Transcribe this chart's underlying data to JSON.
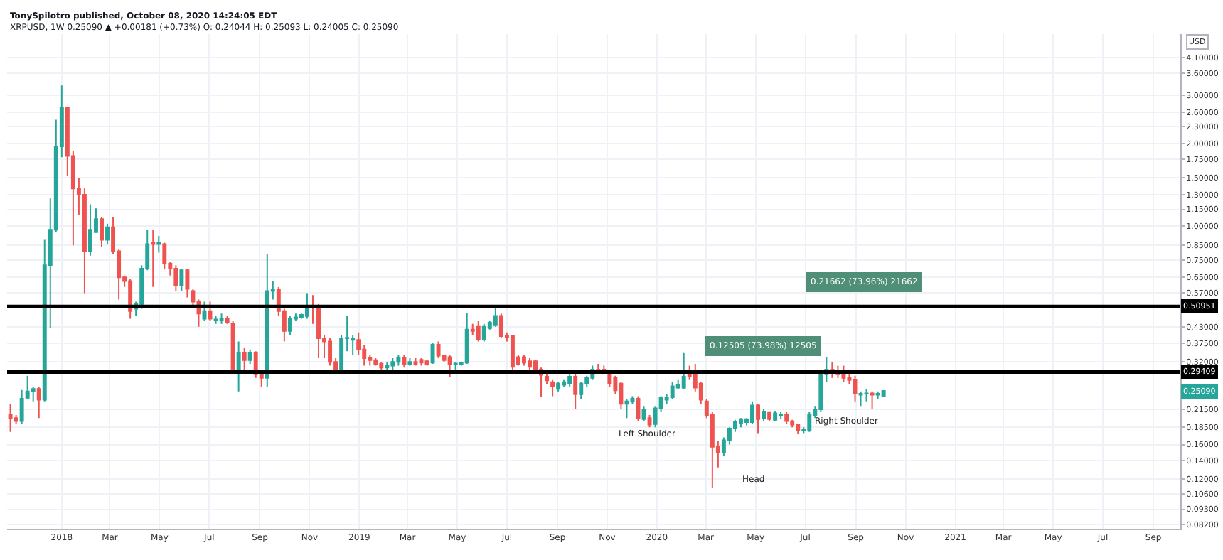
{
  "chart_data": {
    "type": "candlestick",
    "title": "TonySpilotro published, October 08, 2020 14:24:05 EDT",
    "subtitle": "XRPUSD, 1W 0.25090 ▲ +0.00181 (+0.73%) O: 0.24044 H: 0.25093 L: 0.24005 C: 0.25090",
    "ylabel": "USD",
    "x": [
      "2017-10-30",
      "2017-11-06",
      "2017-11-13",
      "2017-11-20",
      "2017-11-27",
      "2017-12-04",
      "2017-12-11",
      "2017-12-18",
      "2017-12-25",
      "2018-01-01",
      "2018-01-08",
      "2018-01-15",
      "2018-01-22",
      "2018-01-29",
      "2018-02-05",
      "2018-02-12",
      "2018-02-19",
      "2018-02-26",
      "2018-03-05",
      "2018-03-12",
      "2018-03-19",
      "2018-03-26",
      "2018-04-02",
      "2018-04-09",
      "2018-04-16",
      "2018-04-23",
      "2018-04-30",
      "2018-05-07",
      "2018-05-14",
      "2018-05-21",
      "2018-05-28",
      "2018-06-04",
      "2018-06-11",
      "2018-06-18",
      "2018-06-25",
      "2018-07-02",
      "2018-07-09",
      "2018-07-16",
      "2018-07-23",
      "2018-07-30",
      "2018-08-06",
      "2018-08-13",
      "2018-08-20",
      "2018-08-27",
      "2018-09-03",
      "2018-09-10",
      "2018-09-17",
      "2018-09-24",
      "2018-10-01",
      "2018-10-08",
      "2018-10-15",
      "2018-10-22",
      "2018-10-29",
      "2018-11-05",
      "2018-11-12",
      "2018-11-19",
      "2018-11-26",
      "2018-12-03",
      "2018-12-10",
      "2018-12-17",
      "2018-12-24",
      "2018-12-31",
      "2019-01-07",
      "2019-01-14",
      "2019-01-21",
      "2019-01-28",
      "2019-02-04",
      "2019-02-11",
      "2019-02-18",
      "2019-02-25",
      "2019-03-04",
      "2019-03-11",
      "2019-03-18",
      "2019-03-25",
      "2019-04-01",
      "2019-04-08",
      "2019-04-15",
      "2019-04-22",
      "2019-04-29",
      "2019-05-06",
      "2019-05-13",
      "2019-05-20",
      "2019-05-27",
      "2019-06-03",
      "2019-06-10",
      "2019-06-17",
      "2019-06-24",
      "2019-07-01",
      "2019-07-08",
      "2019-07-15",
      "2019-07-22",
      "2019-07-29",
      "2019-08-05",
      "2019-08-12",
      "2019-08-19",
      "2019-08-26",
      "2019-09-02",
      "2019-09-09",
      "2019-09-16",
      "2019-09-23",
      "2019-09-30",
      "2019-10-07",
      "2019-10-14",
      "2019-10-21",
      "2019-10-28",
      "2019-11-04",
      "2019-11-11",
      "2019-11-18",
      "2019-11-25",
      "2019-12-02",
      "2019-12-09",
      "2019-12-16",
      "2019-12-23",
      "2019-12-30",
      "2020-01-06",
      "2020-01-13",
      "2020-01-20",
      "2020-01-27",
      "2020-02-03",
      "2020-02-10",
      "2020-02-17",
      "2020-02-24",
      "2020-03-02",
      "2020-03-09",
      "2020-03-16",
      "2020-03-23",
      "2020-03-30",
      "2020-04-06",
      "2020-04-13",
      "2020-04-20",
      "2020-04-27",
      "2020-05-04",
      "2020-05-11",
      "2020-05-18",
      "2020-05-25",
      "2020-06-01",
      "2020-06-08",
      "2020-06-15",
      "2020-06-22",
      "2020-06-29",
      "2020-07-06",
      "2020-07-13",
      "2020-07-20",
      "2020-07-27",
      "2020-08-03",
      "2020-08-10",
      "2020-08-17",
      "2020-08-24",
      "2020-08-31",
      "2020-09-07",
      "2020-09-14",
      "2020-09-21",
      "2020-09-28",
      "2020-10-05"
    ],
    "ohlc": [
      [
        0.205,
        0.225,
        0.178,
        0.2
      ],
      [
        0.2,
        0.205,
        0.19,
        0.195
      ],
      [
        0.195,
        0.253,
        0.19,
        0.235
      ],
      [
        0.237,
        0.285,
        0.235,
        0.25
      ],
      [
        0.25,
        0.26,
        0.23,
        0.255
      ],
      [
        0.255,
        0.26,
        0.2,
        0.233
      ],
      [
        0.233,
        0.89,
        0.23,
        0.72
      ],
      [
        0.72,
        1.26,
        0.425,
        0.97
      ],
      [
        0.97,
        2.44,
        0.95,
        1.95
      ],
      [
        1.95,
        3.25,
        1.78,
        2.7
      ],
      [
        2.7,
        2.72,
        1.52,
        1.8
      ],
      [
        1.8,
        1.87,
        0.85,
        1.37
      ],
      [
        1.37,
        1.5,
        1.1,
        1.3
      ],
      [
        1.3,
        1.37,
        0.57,
        0.81
      ],
      [
        0.81,
        1.2,
        0.78,
        0.97
      ],
      [
        0.95,
        1.16,
        0.95,
        1.06
      ],
      [
        1.06,
        1.08,
        0.84,
        0.89
      ],
      [
        0.89,
        1.02,
        0.86,
        0.99
      ],
      [
        0.99,
        1.08,
        0.79,
        0.81
      ],
      [
        0.81,
        0.82,
        0.54,
        0.65
      ],
      [
        0.65,
        0.66,
        0.6,
        0.63
      ],
      [
        0.63,
        0.64,
        0.46,
        0.49
      ],
      [
        0.5,
        0.53,
        0.47,
        0.52
      ],
      [
        0.52,
        0.72,
        0.5,
        0.7
      ],
      [
        0.7,
        0.97,
        0.69,
        0.86
      ],
      [
        0.87,
        0.97,
        0.6,
        0.86
      ],
      [
        0.86,
        0.92,
        0.8,
        0.87
      ],
      [
        0.86,
        0.87,
        0.7,
        0.73
      ],
      [
        0.73,
        0.74,
        0.66,
        0.7
      ],
      [
        0.7,
        0.72,
        0.58,
        0.61
      ],
      [
        0.61,
        0.7,
        0.58,
        0.69
      ],
      [
        0.69,
        0.7,
        0.55,
        0.59
      ],
      [
        0.58,
        0.59,
        0.51,
        0.53
      ],
      [
        0.53,
        0.54,
        0.43,
        0.48
      ],
      [
        0.46,
        0.53,
        0.45,
        0.49
      ],
      [
        0.49,
        0.53,
        0.45,
        0.46
      ],
      [
        0.455,
        0.47,
        0.44,
        0.457
      ],
      [
        0.455,
        0.48,
        0.44,
        0.46
      ],
      [
        0.46,
        0.47,
        0.44,
        0.445
      ],
      [
        0.44,
        0.45,
        0.29,
        0.3
      ],
      [
        0.3,
        0.38,
        0.25,
        0.345
      ],
      [
        0.345,
        0.36,
        0.3,
        0.325
      ],
      [
        0.325,
        0.355,
        0.315,
        0.345
      ],
      [
        0.345,
        0.35,
        0.28,
        0.29
      ],
      [
        0.29,
        0.3,
        0.26,
        0.28
      ],
      [
        0.28,
        0.79,
        0.26,
        0.58
      ],
      [
        0.58,
        0.63,
        0.54,
        0.585
      ],
      [
        0.585,
        0.6,
        0.47,
        0.49
      ],
      [
        0.49,
        0.5,
        0.38,
        0.415
      ],
      [
        0.415,
        0.47,
        0.4,
        0.46
      ],
      [
        0.46,
        0.48,
        0.45,
        0.465
      ],
      [
        0.465,
        0.48,
        0.46,
        0.475
      ],
      [
        0.47,
        0.57,
        0.46,
        0.51
      ],
      [
        0.51,
        0.56,
        0.44,
        0.505
      ],
      [
        0.505,
        0.52,
        0.33,
        0.39
      ],
      [
        0.39,
        0.4,
        0.33,
        0.38
      ],
      [
        0.38,
        0.39,
        0.31,
        0.32
      ],
      [
        0.32,
        0.33,
        0.29,
        0.3
      ],
      [
        0.3,
        0.4,
        0.29,
        0.39
      ],
      [
        0.39,
        0.47,
        0.35,
        0.392
      ],
      [
        0.385,
        0.4,
        0.34,
        0.39
      ],
      [
        0.385,
        0.41,
        0.34,
        0.355
      ],
      [
        0.355,
        0.37,
        0.31,
        0.33
      ],
      [
        0.33,
        0.34,
        0.31,
        0.325
      ],
      [
        0.325,
        0.33,
        0.31,
        0.315
      ],
      [
        0.315,
        0.32,
        0.29,
        0.305
      ],
      [
        0.305,
        0.32,
        0.29,
        0.31
      ],
      [
        0.31,
        0.33,
        0.3,
        0.32
      ],
      [
        0.32,
        0.34,
        0.31,
        0.33
      ],
      [
        0.33,
        0.34,
        0.305,
        0.315
      ],
      [
        0.315,
        0.33,
        0.31,
        0.32
      ],
      [
        0.32,
        0.33,
        0.31,
        0.315
      ],
      [
        0.326,
        0.33,
        0.31,
        0.318
      ],
      [
        0.322,
        0.325,
        0.31,
        0.315
      ],
      [
        0.318,
        0.375,
        0.315,
        0.37
      ],
      [
        0.37,
        0.38,
        0.33,
        0.337
      ],
      [
        0.337,
        0.34,
        0.32,
        0.325
      ],
      [
        0.333,
        0.34,
        0.283,
        0.315
      ],
      [
        0.315,
        0.32,
        0.3,
        0.316
      ],
      [
        0.315,
        0.32,
        0.31,
        0.318
      ],
      [
        0.318,
        0.482,
        0.315,
        0.42
      ],
      [
        0.42,
        0.44,
        0.4,
        0.415
      ],
      [
        0.43,
        0.45,
        0.38,
        0.387
      ],
      [
        0.387,
        0.44,
        0.38,
        0.43
      ],
      [
        0.425,
        0.45,
        0.42,
        0.445
      ],
      [
        0.435,
        0.51,
        0.43,
        0.471
      ],
      [
        0.471,
        0.48,
        0.39,
        0.397
      ],
      [
        0.397,
        0.41,
        0.38,
        0.393
      ],
      [
        0.397,
        0.4,
        0.3,
        0.307
      ],
      [
        0.333,
        0.34,
        0.31,
        0.315
      ],
      [
        0.333,
        0.34,
        0.31,
        0.318
      ],
      [
        0.322,
        0.33,
        0.3,
        0.307
      ],
      [
        0.322,
        0.325,
        0.29,
        0.3
      ],
      [
        0.3,
        0.305,
        0.238,
        0.287
      ],
      [
        0.283,
        0.29,
        0.265,
        0.274
      ],
      [
        0.27,
        0.275,
        0.24,
        0.261
      ],
      [
        0.255,
        0.27,
        0.25,
        0.267
      ],
      [
        0.264,
        0.275,
        0.26,
        0.27
      ],
      [
        0.267,
        0.29,
        0.26,
        0.283
      ],
      [
        0.283,
        0.29,
        0.215,
        0.244
      ],
      [
        0.244,
        0.27,
        0.235,
        0.267
      ],
      [
        0.267,
        0.285,
        0.26,
        0.28
      ],
      [
        0.28,
        0.31,
        0.275,
        0.3
      ],
      [
        0.3,
        0.315,
        0.29,
        0.297
      ],
      [
        0.3,
        0.31,
        0.29,
        0.297
      ],
      [
        0.297,
        0.3,
        0.26,
        0.267
      ],
      [
        0.28,
        0.285,
        0.245,
        0.252
      ],
      [
        0.267,
        0.27,
        0.215,
        0.225
      ],
      [
        0.225,
        0.235,
        0.2,
        0.23
      ],
      [
        0.23,
        0.24,
        0.225,
        0.235
      ],
      [
        0.235,
        0.24,
        0.195,
        0.2
      ],
      [
        0.198,
        0.22,
        0.195,
        0.215
      ],
      [
        0.2,
        0.205,
        0.185,
        0.189
      ],
      [
        0.19,
        0.22,
        0.185,
        0.217
      ],
      [
        0.217,
        0.24,
        0.21,
        0.238
      ],
      [
        0.233,
        0.245,
        0.225,
        0.238
      ],
      [
        0.238,
        0.27,
        0.235,
        0.261
      ],
      [
        0.258,
        0.275,
        0.255,
        0.264
      ],
      [
        0.258,
        0.345,
        0.255,
        0.283
      ],
      [
        0.293,
        0.31,
        0.275,
        0.283
      ],
      [
        0.29,
        0.315,
        0.25,
        0.258
      ],
      [
        0.267,
        0.27,
        0.225,
        0.233
      ],
      [
        0.23,
        0.235,
        0.2,
        0.205
      ],
      [
        0.205,
        0.21,
        0.111,
        0.157
      ],
      [
        0.157,
        0.165,
        0.132,
        0.15
      ],
      [
        0.15,
        0.17,
        0.145,
        0.166
      ],
      [
        0.166,
        0.185,
        0.16,
        0.183
      ],
      [
        0.183,
        0.197,
        0.178,
        0.193
      ],
      [
        0.191,
        0.2,
        0.185,
        0.198
      ],
      [
        0.193,
        0.2,
        0.188,
        0.198
      ],
      [
        0.193,
        0.23,
        0.19,
        0.222
      ],
      [
        0.222,
        0.225,
        0.176,
        0.198
      ],
      [
        0.2,
        0.215,
        0.195,
        0.21
      ],
      [
        0.209,
        0.21,
        0.195,
        0.198
      ],
      [
        0.197,
        0.212,
        0.195,
        0.208
      ],
      [
        0.205,
        0.21,
        0.198,
        0.206
      ],
      [
        0.205,
        0.21,
        0.19,
        0.195
      ],
      [
        0.193,
        0.197,
        0.185,
        0.189
      ],
      [
        0.189,
        0.19,
        0.175,
        0.18
      ],
      [
        0.18,
        0.185,
        0.176,
        0.181
      ],
      [
        0.18,
        0.21,
        0.178,
        0.205
      ],
      [
        0.205,
        0.22,
        0.2,
        0.215
      ],
      [
        0.215,
        0.3,
        0.21,
        0.29
      ],
      [
        0.29,
        0.333,
        0.27,
        0.3
      ],
      [
        0.3,
        0.32,
        0.28,
        0.295
      ],
      [
        0.295,
        0.31,
        0.28,
        0.29
      ],
      [
        0.29,
        0.31,
        0.27,
        0.28
      ],
      [
        0.28,
        0.29,
        0.265,
        0.275
      ],
      [
        0.275,
        0.285,
        0.23,
        0.245
      ],
      [
        0.243,
        0.25,
        0.22,
        0.245
      ],
      [
        0.245,
        0.255,
        0.23,
        0.246
      ],
      [
        0.246,
        0.25,
        0.215,
        0.243
      ],
      [
        0.243,
        0.25,
        0.235,
        0.245
      ],
      [
        0.24044,
        0.25093,
        0.24005,
        0.2509
      ]
    ],
    "colors": [
      "#ef5350",
      "#ef5350",
      "#26a69a",
      "#26a69a",
      "#26a69a",
      "#ef5350",
      "#26a69a",
      "#26a69a",
      "#26a69a",
      "#26a69a",
      "#ef5350",
      "#ef5350",
      "#ef5350",
      "#ef5350",
      "#26a69a",
      "#26a69a",
      "#ef5350",
      "#26a69a",
      "#ef5350",
      "#ef5350",
      "#ef5350",
      "#ef5350",
      "#26a69a",
      "#26a69a",
      "#26a69a",
      "#ef5350",
      "#26a69a",
      "#ef5350",
      "#ef5350",
      "#ef5350",
      "#26a69a",
      "#ef5350",
      "#ef5350",
      "#ef5350",
      "#26a69a",
      "#ef5350",
      "#26a69a",
      "#26a69a",
      "#ef5350",
      "#ef5350",
      "#26a69a",
      "#ef5350",
      "#26a69a",
      "#ef5350",
      "#ef5350",
      "#26a69a",
      "#26a69a",
      "#ef5350",
      "#ef5350",
      "#26a69a",
      "#26a69a",
      "#26a69a",
      "#26a69a",
      "#ef5350",
      "#ef5350",
      "#ef5350",
      "#ef5350",
      "#ef5350",
      "#26a69a",
      "#26a69a",
      "#26a69a",
      "#ef5350",
      "#ef5350",
      "#ef5350",
      "#ef5350",
      "#ef5350",
      "#26a69a",
      "#26a69a",
      "#26a69a",
      "#ef5350",
      "#26a69a",
      "#ef5350",
      "#ef5350",
      "#ef5350",
      "#26a69a",
      "#ef5350",
      "#ef5350",
      "#ef5350",
      "#26a69a",
      "#26a69a",
      "#26a69a",
      "#ef5350",
      "#ef5350",
      "#26a69a",
      "#26a69a",
      "#26a69a",
      "#ef5350",
      "#ef5350",
      "#ef5350",
      "#ef5350",
      "#ef5350",
      "#ef5350",
      "#ef5350",
      "#ef5350",
      "#ef5350",
      "#ef5350",
      "#26a69a",
      "#26a69a",
      "#26a69a",
      "#ef5350",
      "#26a69a",
      "#26a69a",
      "#26a69a",
      "#ef5350",
      "#ef5350",
      "#ef5350",
      "#ef5350",
      "#ef5350",
      "#26a69a",
      "#26a69a",
      "#ef5350",
      "#26a69a",
      "#ef5350",
      "#26a69a",
      "#26a69a",
      "#26a69a",
      "#26a69a",
      "#26a69a",
      "#26a69a",
      "#ef5350",
      "#ef5350",
      "#ef5350",
      "#ef5350",
      "#ef5350",
      "#ef5350",
      "#26a69a",
      "#26a69a",
      "#26a69a",
      "#26a69a",
      "#26a69a",
      "#26a69a",
      "#ef5350",
      "#26a69a",
      "#ef5350",
      "#26a69a",
      "#26a69a",
      "#ef5350",
      "#ef5350",
      "#ef5350",
      "#26a69a",
      "#26a69a",
      "#26a69a",
      "#26a69a",
      "#26a69a",
      "#ef5350",
      "#ef5350",
      "#ef5350",
      "#ef5350",
      "#ef5350",
      "#26a69a",
      "#26a69a",
      "#ef5350",
      "#26a69a",
      "#26a69a"
    ],
    "log": true,
    "grid": true,
    "xlim": [
      "2017-10-26",
      "2021-10-04"
    ],
    "xticks": [
      {
        "value": "2018-01-01",
        "label": "2018"
      },
      {
        "value": "2018-03-01",
        "label": "Mar"
      },
      {
        "value": "2018-05-01",
        "label": "May"
      },
      {
        "value": "2018-07-01",
        "label": "Jul"
      },
      {
        "value": "2018-09-01",
        "label": "Sep"
      },
      {
        "value": "2018-11-01",
        "label": "Nov"
      },
      {
        "value": "2019-01-01",
        "label": "2019"
      },
      {
        "value": "2019-03-01",
        "label": "Mar"
      },
      {
        "value": "2019-05-01",
        "label": "May"
      },
      {
        "value": "2019-07-01",
        "label": "Jul"
      },
      {
        "value": "2019-09-01",
        "label": "Sep"
      },
      {
        "value": "2019-11-01",
        "label": "Nov"
      },
      {
        "value": "2020-01-01",
        "label": "2020"
      },
      {
        "value": "2020-03-01",
        "label": "Mar"
      },
      {
        "value": "2020-05-01",
        "label": "May"
      },
      {
        "value": "2020-07-01",
        "label": "Jul"
      },
      {
        "value": "2020-09-01",
        "label": "Sep"
      },
      {
        "value": "2020-11-01",
        "label": "Nov"
      },
      {
        "value": "2021-01-01",
        "label": "2021"
      },
      {
        "value": "2021-03-01",
        "label": "Mar"
      },
      {
        "value": "2021-05-01",
        "label": "May"
      },
      {
        "value": "2021-07-01",
        "label": "Jul"
      },
      {
        "value": "2021-09-01",
        "label": "Sep"
      }
    ],
    "ylim": [
      0.079,
      5.0
    ],
    "yticks": [
      {
        "value": 4.1,
        "label": "4.10000"
      },
      {
        "value": 3.6,
        "label": "3.60000"
      },
      {
        "value": 3.0,
        "label": "3.00000"
      },
      {
        "value": 2.6,
        "label": "2.60000"
      },
      {
        "value": 2.3,
        "label": "2.30000"
      },
      {
        "value": 2.0,
        "label": "2.00000"
      },
      {
        "value": 1.75,
        "label": "1.75000"
      },
      {
        "value": 1.5,
        "label": "1.50000"
      },
      {
        "value": 1.3,
        "label": "1.30000"
      },
      {
        "value": 1.15,
        "label": "1.15000"
      },
      {
        "value": 1.0,
        "label": "1.00000"
      },
      {
        "value": 0.85,
        "label": "0.85000"
      },
      {
        "value": 0.75,
        "label": "0.75000"
      },
      {
        "value": 0.65,
        "label": "0.65000"
      },
      {
        "value": 0.57,
        "label": "0.57000"
      },
      {
        "value": 0.43,
        "label": "0.43000"
      },
      {
        "value": 0.375,
        "label": "0.37500"
      },
      {
        "value": 0.32,
        "label": "0.32000"
      },
      {
        "value": 0.215,
        "label": "0.21500"
      },
      {
        "value": 0.185,
        "label": "0.18500"
      },
      {
        "value": 0.16,
        "label": "0.16000"
      },
      {
        "value": 0.14,
        "label": "0.14000"
      },
      {
        "value": 0.12,
        "label": "0.12000"
      },
      {
        "value": 0.106,
        "label": "0.10600"
      },
      {
        "value": 0.093,
        "label": "0.09300"
      },
      {
        "value": 0.082,
        "label": "0.08200"
      }
    ],
    "ref_lines": [
      {
        "axis": "y",
        "value": 0.50951,
        "label": "0.50951",
        "color": "#000000"
      },
      {
        "axis": "y",
        "value": 0.29409,
        "label": "0.29409",
        "color": "#000000"
      }
    ],
    "annotations": [
      "Left Shoulder",
      "Head",
      "Right Shoulder",
      "0.12505 (73.98%) 12505",
      "0.21662 (73.96%) 21662",
      "0.25090"
    ]
  }
}
